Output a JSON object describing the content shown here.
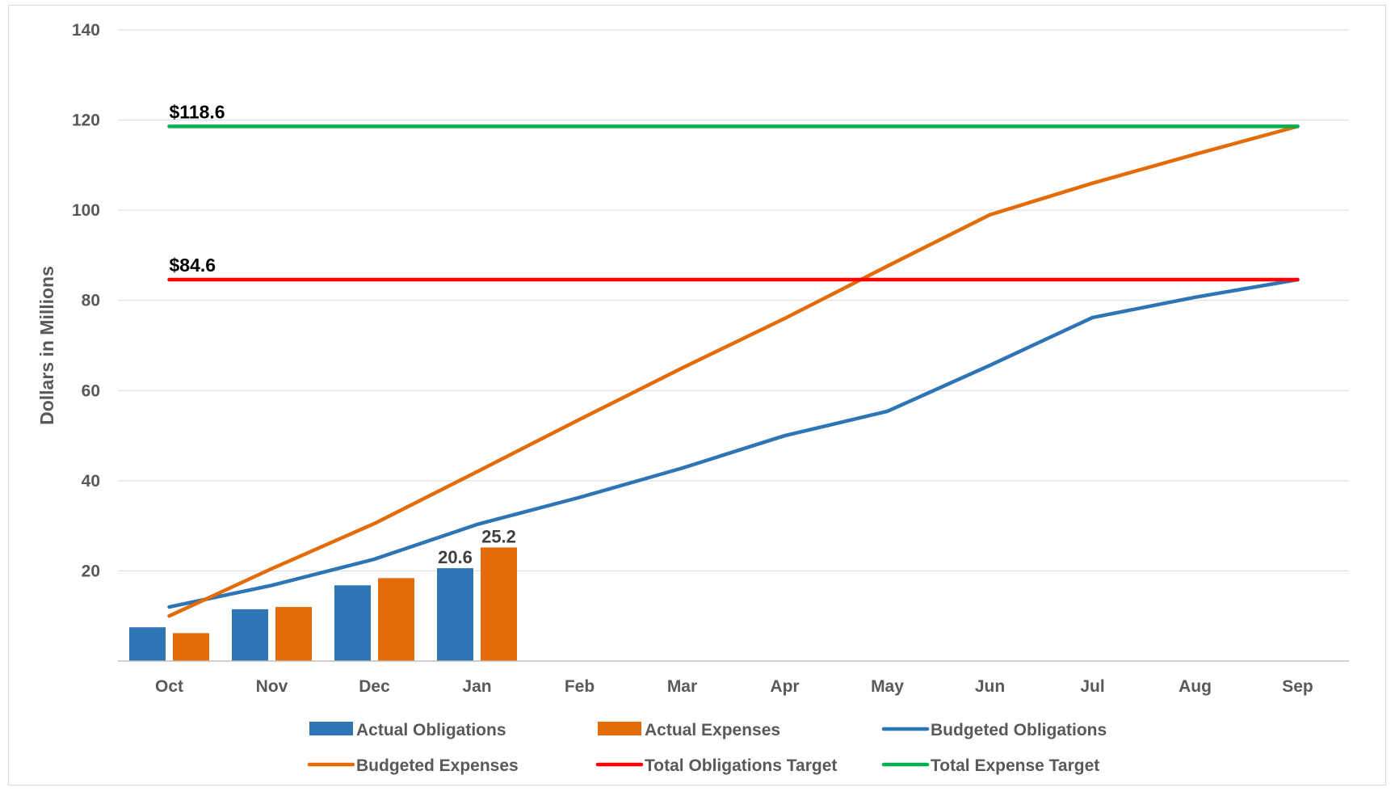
{
  "chart_data": {
    "type": "bar",
    "categories": [
      "Oct",
      "Nov",
      "Dec",
      "Jan",
      "Feb",
      "Mar",
      "Apr",
      "May",
      "Jun",
      "Jul",
      "Aug",
      "Sep"
    ],
    "ylabel": "Dollars in Millions",
    "ylim": [
      0,
      140
    ],
    "yticks": [
      20,
      40,
      60,
      80,
      100,
      120,
      140
    ],
    "grid": true,
    "legend_position": "bottom",
    "bar_series": [
      {
        "name": "Actual Obligations",
        "color": "#2E75B6",
        "values": [
          7.5,
          11.5,
          16.8,
          20.6
        ],
        "labels": [
          "",
          "",
          "",
          "20.6"
        ]
      },
      {
        "name": "Actual Expenses",
        "color": "#E36C09",
        "values": [
          6.2,
          12.0,
          18.4,
          25.2
        ],
        "labels": [
          "",
          "",
          "",
          "25.2"
        ]
      }
    ],
    "line_series": [
      {
        "name": "Budgeted Obligations",
        "color": "#2E75B6",
        "values": [
          12.0,
          16.8,
          22.6,
          30.3,
          36.3,
          42.8,
          50.0,
          55.4,
          65.6,
          76.2,
          80.7,
          84.6
        ]
      },
      {
        "name": "Budgeted Expenses",
        "color": "#E36C09",
        "values": [
          10.0,
          20.5,
          30.5,
          42.0,
          53.6,
          65.0,
          76.0,
          87.6,
          99.0,
          106.0,
          112.4,
          118.6
        ]
      },
      {
        "name": "Total Obligations Target",
        "color": "#FF0000",
        "values": [
          84.6,
          84.6,
          84.6,
          84.6,
          84.6,
          84.6,
          84.6,
          84.6,
          84.6,
          84.6,
          84.6,
          84.6
        ],
        "label": "$84.6"
      },
      {
        "name": "Total Expense Target",
        "color": "#00B050",
        "values": [
          118.6,
          118.6,
          118.6,
          118.6,
          118.6,
          118.6,
          118.6,
          118.6,
          118.6,
          118.6,
          118.6,
          118.6
        ],
        "label": "$118.6"
      }
    ],
    "legend": [
      {
        "name": "Actual Obligations",
        "kind": "bar",
        "color": "#2E75B6"
      },
      {
        "name": "Actual Expenses",
        "kind": "bar",
        "color": "#E36C09"
      },
      {
        "name": "Budgeted Obligations",
        "kind": "line",
        "color": "#2E75B6"
      },
      {
        "name": "Budgeted Expenses",
        "kind": "line",
        "color": "#E36C09"
      },
      {
        "name": "Total Obligations Target",
        "kind": "line",
        "color": "#FF0000"
      },
      {
        "name": "Total Expense Target",
        "kind": "line",
        "color": "#00B050"
      }
    ]
  }
}
